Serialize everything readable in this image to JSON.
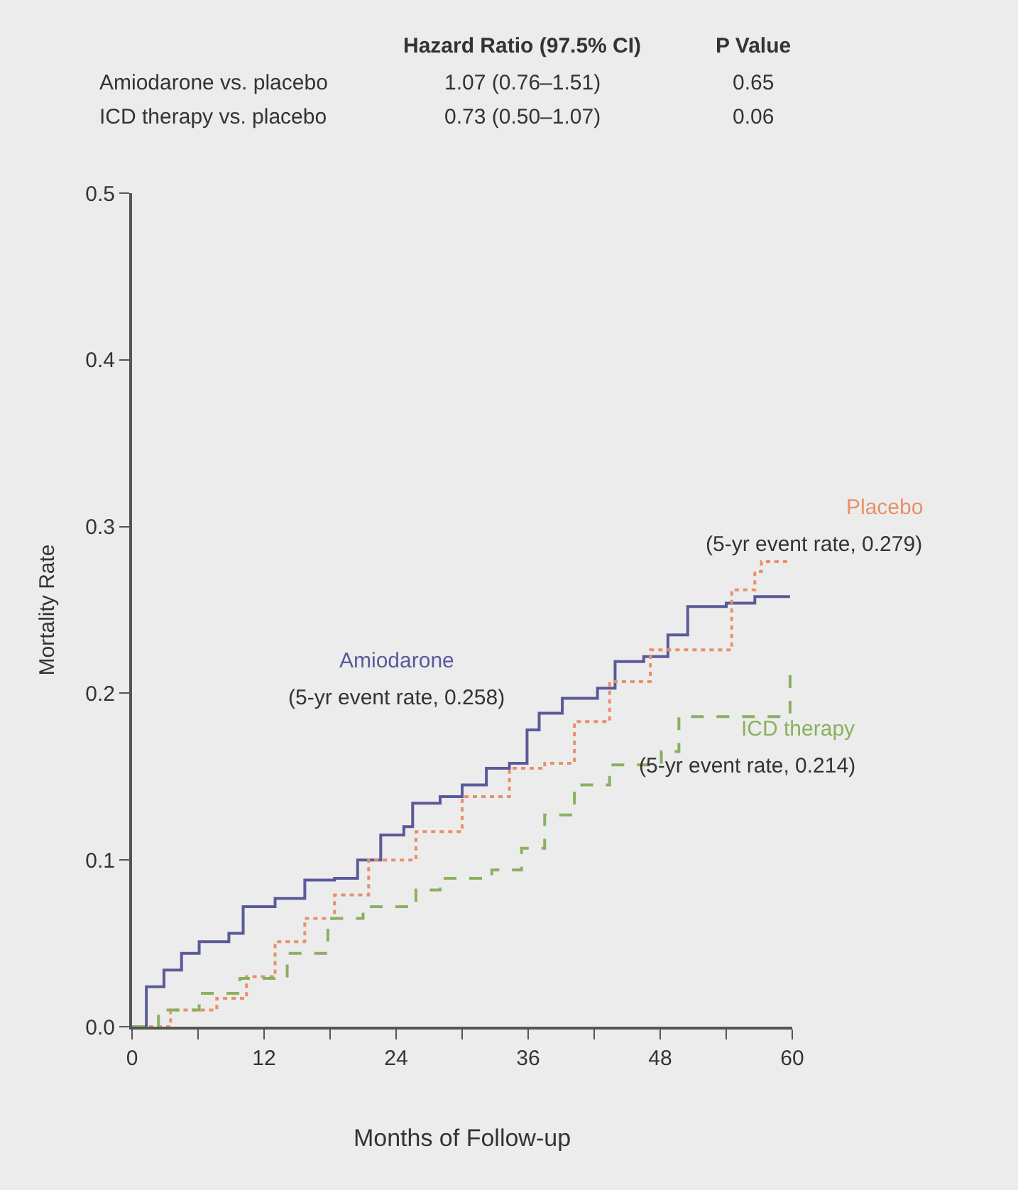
{
  "chart_data": {
    "type": "step",
    "xlabel": "Months of Follow-up",
    "ylabel": "Mortality Rate",
    "xlim": [
      0,
      60
    ],
    "ylim": [
      0,
      0.5
    ],
    "xticks": [
      0,
      {
        "value": 6,
        "label": null
      },
      12,
      {
        "value": 18,
        "label": null
      },
      24,
      {
        "value": 30,
        "label": null
      },
      36,
      {
        "value": 42,
        "label": null
      },
      48,
      {
        "value": 54,
        "label": null
      },
      60
    ],
    "yticks": [
      {
        "value": 0,
        "label": "0.0"
      },
      0.1,
      0.2,
      0.3,
      0.4,
      0.5
    ],
    "grid": false,
    "legend": false,
    "marker": "none",
    "series": [
      {
        "name": "Amiodarone",
        "color": "#5a5a9a",
        "line_style": "solid",
        "x": [
          0,
          1.3,
          2.9,
          4.5,
          6.1,
          8.8,
          10.1,
          13,
          15.7,
          18.4,
          20.5,
          22.6,
          24.7,
          25.5,
          28,
          30,
          32.2,
          34.3,
          35.9,
          37,
          39.1,
          42.3,
          43.9,
          46.5,
          48.7,
          50.5,
          54,
          56.6,
          59.8
        ],
        "values": [
          0,
          0.024,
          0.034,
          0.044,
          0.051,
          0.056,
          0.072,
          0.077,
          0.088,
          0.089,
          0.1,
          0.115,
          0.12,
          0.134,
          0.138,
          0.145,
          0.155,
          0.158,
          0.178,
          0.188,
          0.197,
          0.203,
          0.219,
          0.222,
          0.235,
          0.252,
          0.254,
          0.258,
          0.258
        ]
      },
      {
        "name": "Placebo",
        "color": "#e8906a",
        "line_style": "dotted",
        "x": [
          0,
          3.5,
          7.7,
          10.4,
          13,
          15.7,
          18.4,
          21.5,
          25.8,
          30,
          34.3,
          37.5,
          40.2,
          43.4,
          47.1,
          52.4,
          54.5,
          56.6,
          57.2,
          59.8
        ],
        "values": [
          0,
          0.01,
          0.017,
          0.03,
          0.051,
          0.065,
          0.079,
          0.1,
          0.117,
          0.138,
          0.155,
          0.158,
          0.183,
          0.207,
          0.226,
          0.226,
          0.262,
          0.273,
          0.279,
          0.279
        ]
      },
      {
        "name": "ICD therapy",
        "color": "#8ab060",
        "line_style": "dashed",
        "x": [
          0,
          2.4,
          6.1,
          9.8,
          14.1,
          17.8,
          21,
          25.8,
          28,
          32.7,
          35.4,
          37.5,
          40.2,
          43.4,
          48.1,
          49.7,
          59.3,
          59.8
        ],
        "values": [
          0,
          0.01,
          0.02,
          0.029,
          0.044,
          0.065,
          0.072,
          0.082,
          0.089,
          0.094,
          0.107,
          0.127,
          0.145,
          0.157,
          0.165,
          0.186,
          0.186,
          0.214
        ]
      }
    ],
    "annotations": [
      "(5-yr event rate, 0.258)",
      "(5-yr event rate, 0.279)",
      "(5-yr event rate, 0.214)",
      "Hazard Ratio (97.5% CI)",
      "P Value",
      "Amiodarone vs. placebo",
      "1.07 (0.76–1.51)",
      "0.65",
      "ICD therapy vs. placebo",
      "0.73 (0.50–1.07)",
      "0.06"
    ]
  }
}
